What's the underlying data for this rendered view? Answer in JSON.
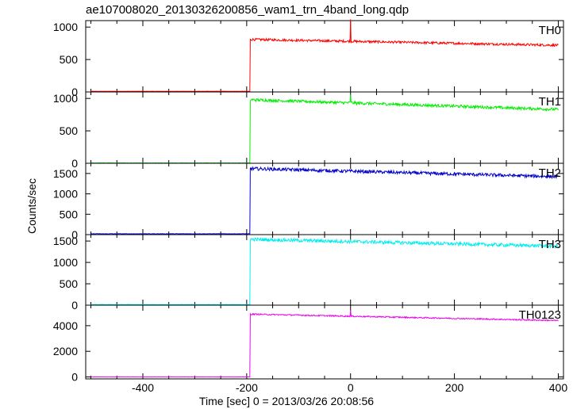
{
  "chart_data": {
    "type": "line",
    "title": "ae107008020_20130326200856_wam1_trn_4band_long.qdp",
    "xlabel": "Time [sec] 0 = 2013/03/26 20:08:56",
    "ylabel": "Counts/sec",
    "xlim": [
      -510,
      410
    ],
    "xticks": [
      -400,
      -200,
      0,
      200,
      400
    ],
    "grid": false,
    "panels": [
      {
        "name": "TH0",
        "color": "#ff0000",
        "ylim": [
          0,
          1100
        ],
        "yticks": [
          0,
          500,
          1000
        ],
        "pre_level": 10,
        "rise_time": -193,
        "peak_level": 810,
        "end_level": 720,
        "noise": 18,
        "spikes": [
          {
            "x": 0,
            "y": 1120
          }
        ]
      },
      {
        "name": "TH1",
        "color": "#00ee00",
        "ylim": [
          0,
          1100
        ],
        "yticks": [
          0,
          500,
          1000
        ],
        "pre_level": 5,
        "rise_time": -193,
        "peak_level": 980,
        "end_level": 830,
        "noise": 22,
        "spikes": [
          {
            "x": 0,
            "y": 1060
          }
        ]
      },
      {
        "name": "TH2",
        "color": "#0000cc",
        "ylim": [
          0,
          1750
        ],
        "yticks": [
          0,
          500,
          1000,
          1500
        ],
        "pre_level": 20,
        "rise_time": -193,
        "peak_level": 1620,
        "end_level": 1420,
        "noise": 40,
        "spikes": []
      },
      {
        "name": "TH3",
        "color": "#00eeee",
        "ylim": [
          0,
          1650
        ],
        "yticks": [
          0,
          500,
          1000,
          1500
        ],
        "pre_level": 15,
        "rise_time": -193,
        "peak_level": 1540,
        "end_level": 1380,
        "noise": 40,
        "spikes": []
      },
      {
        "name": "TH0123",
        "color": "#ee00ee",
        "ylim": [
          -150,
          5600
        ],
        "yticks": [
          0,
          2000,
          4000
        ],
        "pre_level": 0,
        "rise_time": -193,
        "peak_level": 4900,
        "end_level": 4400,
        "noise": 50,
        "spikes": [
          {
            "x": 0,
            "y": 5200
          }
        ]
      }
    ]
  }
}
